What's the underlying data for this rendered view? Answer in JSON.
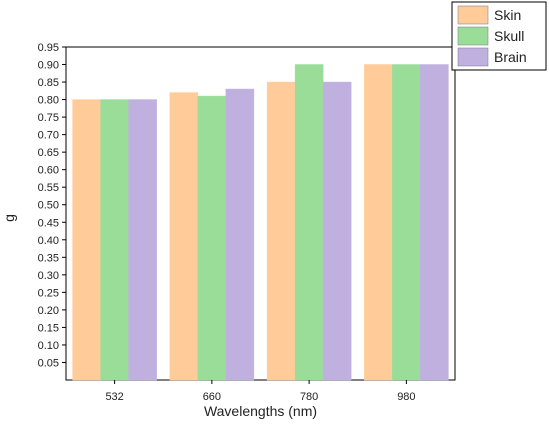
{
  "chart_data": {
    "type": "bar",
    "title": "",
    "xlabel": "Wavelengths (nm)",
    "ylabel": "g",
    "categories": [
      "532",
      "660",
      "780",
      "980"
    ],
    "series": [
      {
        "name": "Skin",
        "values": [
          0.8,
          0.82,
          0.85,
          0.9
        ],
        "color": "#FFCC99"
      },
      {
        "name": "Skull",
        "values": [
          0.8,
          0.81,
          0.9,
          0.9
        ],
        "color": "#99DD99"
      },
      {
        "name": "Brain",
        "values": [
          0.8,
          0.83,
          0.85,
          0.9
        ],
        "color": "#C0B0E0"
      }
    ],
    "ylim": [
      0,
      0.95
    ],
    "yticks": [
      "0.05",
      "0.10",
      "0.15",
      "0.20",
      "0.25",
      "0.30",
      "0.35",
      "0.40",
      "0.45",
      "0.50",
      "0.55",
      "0.60",
      "0.65",
      "0.70",
      "0.75",
      "0.80",
      "0.85",
      "0.90",
      "0.95"
    ],
    "legend": "top-right",
    "grid": false
  }
}
